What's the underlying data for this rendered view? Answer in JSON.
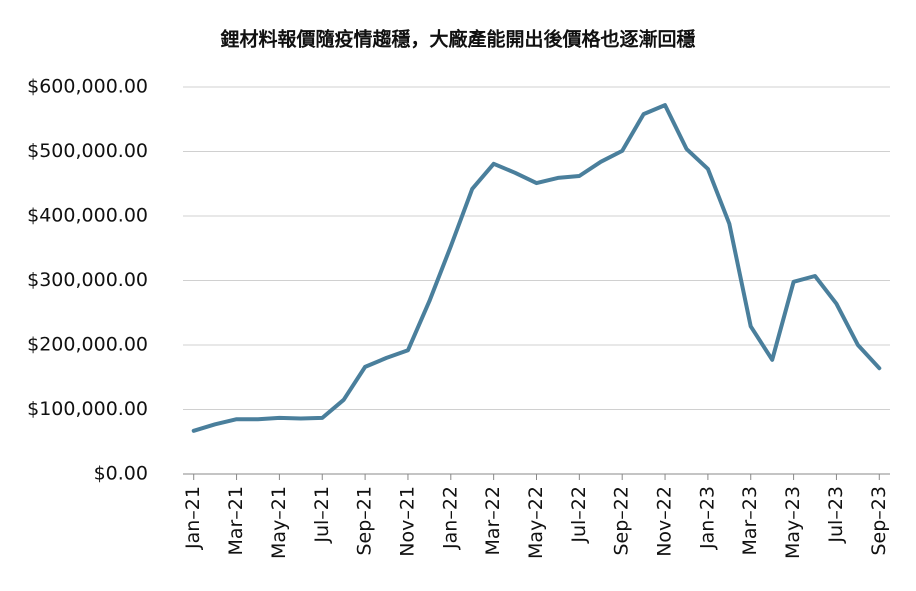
{
  "chart_data": {
    "type": "line",
    "title": "鋰材料報價隨疫情趨穩，大廠產能開出後價格也逐漸回穩",
    "categories": [
      "Jan–21",
      null,
      "Mar–21",
      null,
      "May–21",
      null,
      "Jul–21",
      null,
      "Sep–21",
      null,
      "Nov–21",
      null,
      "Jan–22",
      null,
      "Mar–22",
      null,
      "May–22",
      null,
      "Jul–22",
      null,
      "Sep–22",
      null,
      "Nov–22",
      null,
      "Jan–23",
      null,
      "Mar–23",
      null,
      "May–23",
      null,
      "Jul–23",
      null,
      "Sep–23"
    ],
    "series": [
      {
        "color": "#4a7f9c",
        "values": [
          67000,
          77000,
          85000,
          85000,
          87000,
          86000,
          87000,
          115000,
          166000,
          180000,
          192000,
          268000,
          353000,
          442000,
          481000,
          467000,
          451000,
          459000,
          462000,
          484000,
          501000,
          558000,
          572000,
          504000,
          473000,
          388000,
          229000,
          177000,
          298000,
          307000,
          264000,
          200000,
          164000
        ]
      }
    ],
    "ylim": [
      0,
      600000
    ],
    "yticks": [
      {
        "value": 0,
        "label": "$0.00"
      },
      {
        "value": 100000,
        "label": "$100,000.00"
      },
      {
        "value": 200000,
        "label": "$200,000.00"
      },
      {
        "value": 300000,
        "label": "$300,000.00"
      },
      {
        "value": 400000,
        "label": "$400,000.00"
      },
      {
        "value": 500000,
        "label": "$500,000.00"
      },
      {
        "value": 600000,
        "label": "$600,000.00"
      }
    ],
    "grid": true
  }
}
